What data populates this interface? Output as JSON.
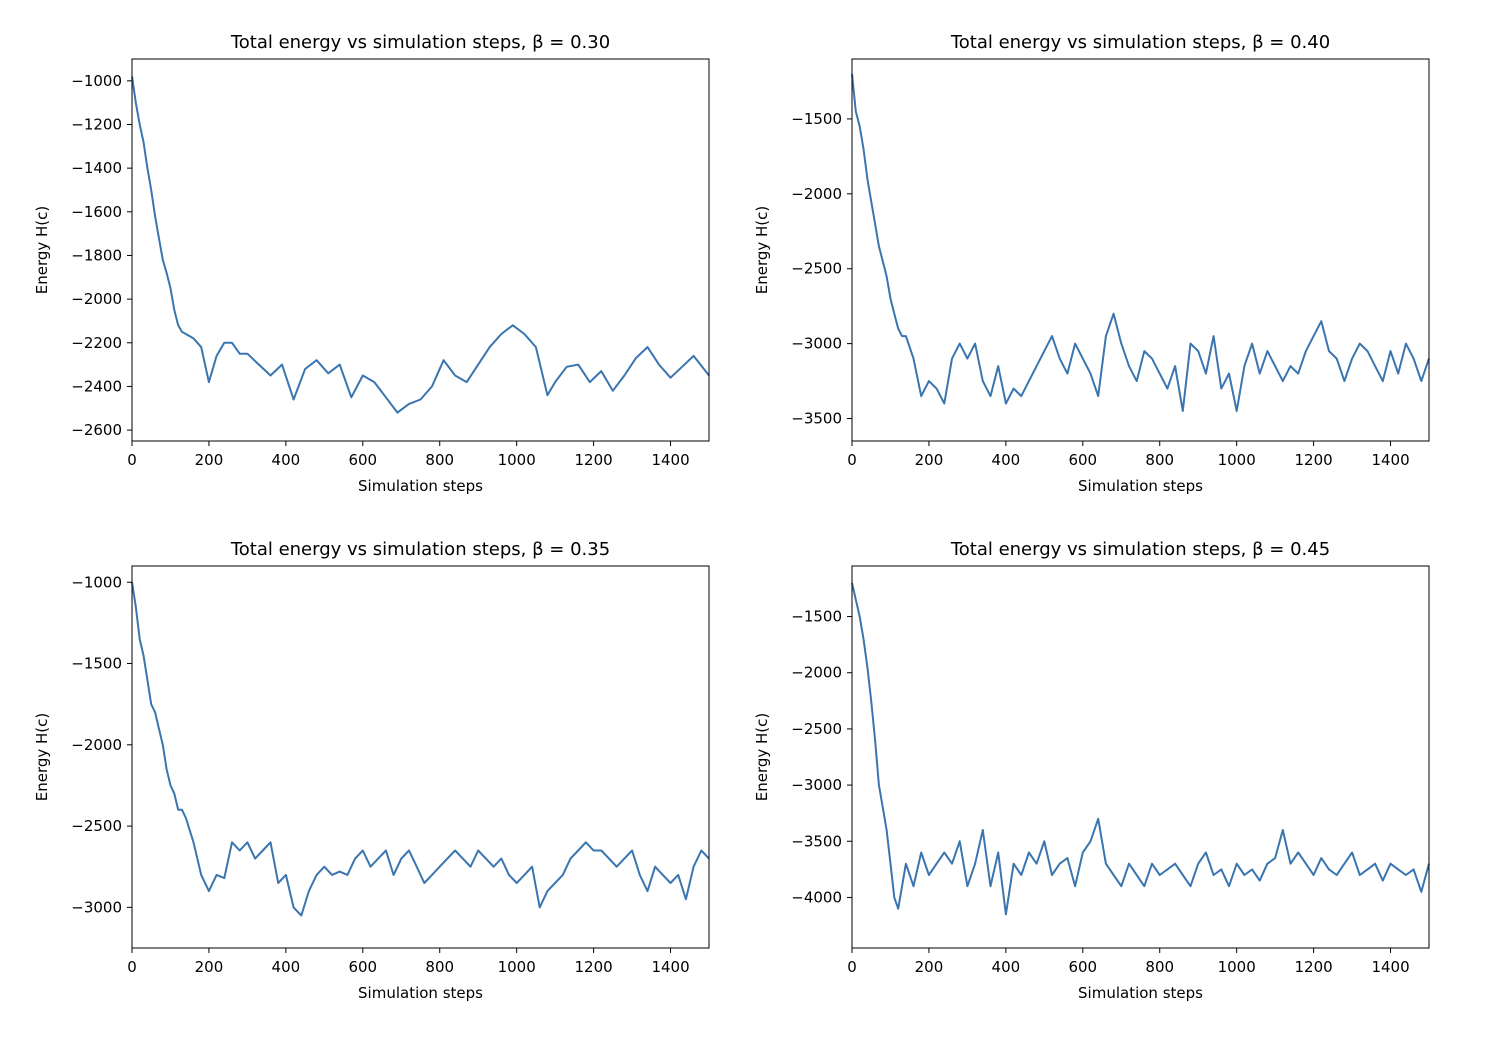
{
  "colors": {
    "line": "#3a75b0",
    "background": "#ffffff",
    "axes": "#000000"
  },
  "chart_data": [
    {
      "type": "line",
      "title": "Total energy vs simulation steps, β = 0.30",
      "xlabel": "Simulation steps",
      "ylabel": "Energy H(c)",
      "xlim": [
        0,
        1500
      ],
      "ylim": [
        -2650,
        -900
      ],
      "xticks": [
        0,
        200,
        400,
        600,
        800,
        1000,
        1200,
        1400
      ],
      "yticks": [
        -1000,
        -1200,
        -1400,
        -1600,
        -1800,
        -2000,
        -2200,
        -2400,
        -2600
      ],
      "ytick_labels": [
        "−1000",
        "−1200",
        "−1400",
        "−1600",
        "−1800",
        "−2000",
        "−2200",
        "−2400",
        "−2600"
      ],
      "grid": false,
      "series": [
        {
          "x": [
            0,
            10,
            20,
            30,
            40,
            50,
            60,
            70,
            80,
            90,
            100,
            110,
            120,
            130,
            140,
            160,
            180,
            200,
            220,
            240,
            260,
            280,
            300,
            330,
            360,
            390,
            420,
            450,
            480,
            510,
            540,
            570,
            600,
            630,
            660,
            690,
            720,
            750,
            780,
            810,
            840,
            870,
            900,
            930,
            960,
            990,
            1020,
            1050,
            1080,
            1100,
            1130,
            1160,
            1190,
            1220,
            1250,
            1280,
            1310,
            1340,
            1370,
            1400,
            1430,
            1460,
            1500
          ],
          "y": [
            -980,
            -1100,
            -1200,
            -1280,
            -1400,
            -1500,
            -1620,
            -1720,
            -1820,
            -1880,
            -1950,
            -2050,
            -2120,
            -2150,
            -2160,
            -2180,
            -2220,
            -2380,
            -2260,
            -2200,
            -2200,
            -2250,
            -2250,
            -2300,
            -2350,
            -2300,
            -2460,
            -2320,
            -2280,
            -2340,
            -2300,
            -2450,
            -2350,
            -2380,
            -2450,
            -2520,
            -2480,
            -2460,
            -2400,
            -2280,
            -2350,
            -2380,
            -2300,
            -2220,
            -2160,
            -2120,
            -2160,
            -2220,
            -2440,
            -2380,
            -2310,
            -2300,
            -2380,
            -2330,
            -2420,
            -2350,
            -2270,
            -2220,
            -2300,
            -2360,
            -2310,
            -2260,
            -2350
          ]
        }
      ]
    },
    {
      "type": "line",
      "title": "Total energy vs simulation steps, β = 0.40",
      "xlabel": "Simulation steps",
      "ylabel": "Energy H(c)",
      "xlim": [
        0,
        1500
      ],
      "ylim": [
        -3650,
        -1100
      ],
      "xticks": [
        0,
        200,
        400,
        600,
        800,
        1000,
        1200,
        1400
      ],
      "yticks": [
        -1500,
        -2000,
        -2500,
        -3000,
        -3500
      ],
      "ytick_labels": [
        "−1500",
        "−2000",
        "−2500",
        "−3000",
        "−3500"
      ],
      "grid": false,
      "series": [
        {
          "x": [
            0,
            10,
            20,
            30,
            40,
            50,
            60,
            70,
            80,
            90,
            100,
            110,
            120,
            130,
            140,
            160,
            180,
            200,
            220,
            240,
            260,
            280,
            300,
            320,
            340,
            360,
            380,
            400,
            420,
            440,
            460,
            480,
            500,
            520,
            540,
            560,
            580,
            600,
            620,
            640,
            660,
            680,
            700,
            720,
            740,
            760,
            780,
            800,
            820,
            840,
            860,
            880,
            900,
            920,
            940,
            960,
            980,
            1000,
            1020,
            1040,
            1060,
            1080,
            1100,
            1120,
            1140,
            1160,
            1180,
            1200,
            1220,
            1240,
            1260,
            1280,
            1300,
            1320,
            1340,
            1360,
            1380,
            1400,
            1420,
            1440,
            1460,
            1480,
            1500
          ],
          "y": [
            -1200,
            -1450,
            -1550,
            -1700,
            -1900,
            -2050,
            -2200,
            -2350,
            -2450,
            -2550,
            -2700,
            -2800,
            -2900,
            -2950,
            -2950,
            -3100,
            -3350,
            -3250,
            -3300,
            -3400,
            -3100,
            -3000,
            -3100,
            -3000,
            -3250,
            -3350,
            -3150,
            -3400,
            -3300,
            -3350,
            -3250,
            -3150,
            -3050,
            -2950,
            -3100,
            -3200,
            -3000,
            -3100,
            -3200,
            -3350,
            -2950,
            -2800,
            -3000,
            -3150,
            -3250,
            -3050,
            -3100,
            -3200,
            -3300,
            -3150,
            -3450,
            -3000,
            -3050,
            -3200,
            -2950,
            -3300,
            -3200,
            -3450,
            -3150,
            -3000,
            -3200,
            -3050,
            -3150,
            -3250,
            -3150,
            -3200,
            -3050,
            -2950,
            -2850,
            -3050,
            -3100,
            -3250,
            -3100,
            -3000,
            -3050,
            -3150,
            -3250,
            -3050,
            -3200,
            -3000,
            -3100,
            -3250,
            -3100
          ]
        }
      ]
    },
    {
      "type": "line",
      "title": "Total energy vs simulation steps, β = 0.35",
      "xlabel": "Simulation steps",
      "ylabel": "Energy H(c)",
      "xlim": [
        0,
        1500
      ],
      "ylim": [
        -3250,
        -900
      ],
      "xticks": [
        0,
        200,
        400,
        600,
        800,
        1000,
        1200,
        1400
      ],
      "yticks": [
        -1000,
        -1500,
        -2000,
        -2500,
        -3000
      ],
      "ytick_labels": [
        "−1000",
        "−1500",
        "−2000",
        "−2500",
        "−3000"
      ],
      "grid": false,
      "series": [
        {
          "x": [
            0,
            10,
            20,
            30,
            40,
            50,
            60,
            70,
            80,
            90,
            100,
            110,
            120,
            130,
            140,
            160,
            180,
            200,
            220,
            240,
            260,
            280,
            300,
            320,
            340,
            360,
            380,
            400,
            420,
            440,
            460,
            480,
            500,
            520,
            540,
            560,
            580,
            600,
            620,
            640,
            660,
            680,
            700,
            720,
            740,
            760,
            780,
            800,
            820,
            840,
            860,
            880,
            900,
            920,
            940,
            960,
            980,
            1000,
            1020,
            1040,
            1060,
            1080,
            1100,
            1120,
            1140,
            1160,
            1180,
            1200,
            1220,
            1240,
            1260,
            1280,
            1300,
            1320,
            1340,
            1360,
            1380,
            1400,
            1420,
            1440,
            1460,
            1480,
            1500
          ],
          "y": [
            -1000,
            -1150,
            -1350,
            -1450,
            -1600,
            -1750,
            -1800,
            -1900,
            -2000,
            -2150,
            -2250,
            -2300,
            -2400,
            -2400,
            -2450,
            -2600,
            -2800,
            -2900,
            -2800,
            -2820,
            -2600,
            -2650,
            -2600,
            -2700,
            -2650,
            -2600,
            -2850,
            -2800,
            -3000,
            -3050,
            -2900,
            -2800,
            -2750,
            -2800,
            -2780,
            -2800,
            -2700,
            -2650,
            -2750,
            -2700,
            -2650,
            -2800,
            -2700,
            -2650,
            -2750,
            -2850,
            -2800,
            -2750,
            -2700,
            -2650,
            -2700,
            -2750,
            -2650,
            -2700,
            -2750,
            -2700,
            -2800,
            -2850,
            -2800,
            -2750,
            -3000,
            -2900,
            -2850,
            -2800,
            -2700,
            -2650,
            -2600,
            -2650,
            -2650,
            -2700,
            -2750,
            -2700,
            -2650,
            -2800,
            -2900,
            -2750,
            -2800,
            -2850,
            -2800,
            -2950,
            -2750,
            -2650,
            -2700
          ]
        }
      ]
    },
    {
      "type": "line",
      "title": "Total energy vs simulation steps, β = 0.45",
      "xlabel": "Simulation steps",
      "ylabel": "Energy H(c)",
      "xlim": [
        0,
        1500
      ],
      "ylim": [
        -4450,
        -1050
      ],
      "xticks": [
        0,
        200,
        400,
        600,
        800,
        1000,
        1200,
        1400
      ],
      "yticks": [
        -1500,
        -2000,
        -2500,
        -3000,
        -3500,
        -4000
      ],
      "ytick_labels": [
        "−1500",
        "−2000",
        "−2500",
        "−3000",
        "−3500",
        "−4000"
      ],
      "grid": false,
      "series": [
        {
          "x": [
            0,
            10,
            20,
            30,
            40,
            50,
            60,
            70,
            80,
            90,
            100,
            110,
            120,
            140,
            160,
            180,
            200,
            220,
            240,
            260,
            280,
            300,
            320,
            340,
            360,
            380,
            400,
            420,
            440,
            460,
            480,
            500,
            520,
            540,
            560,
            580,
            600,
            620,
            640,
            660,
            680,
            700,
            720,
            740,
            760,
            780,
            800,
            820,
            840,
            860,
            880,
            900,
            920,
            940,
            960,
            980,
            1000,
            1020,
            1040,
            1060,
            1080,
            1100,
            1120,
            1140,
            1160,
            1180,
            1200,
            1220,
            1240,
            1260,
            1280,
            1300,
            1320,
            1340,
            1360,
            1380,
            1400,
            1420,
            1440,
            1460,
            1480,
            1500
          ],
          "y": [
            -1200,
            -1350,
            -1500,
            -1700,
            -1950,
            -2250,
            -2600,
            -3000,
            -3200,
            -3400,
            -3700,
            -4000,
            -4100,
            -3700,
            -3900,
            -3600,
            -3800,
            -3700,
            -3600,
            -3700,
            -3500,
            -3900,
            -3700,
            -3400,
            -3900,
            -3600,
            -4150,
            -3700,
            -3800,
            -3600,
            -3700,
            -3500,
            -3800,
            -3700,
            -3650,
            -3900,
            -3600,
            -3500,
            -3300,
            -3700,
            -3800,
            -3900,
            -3700,
            -3800,
            -3900,
            -3700,
            -3800,
            -3750,
            -3700,
            -3800,
            -3900,
            -3700,
            -3600,
            -3800,
            -3750,
            -3900,
            -3700,
            -3800,
            -3750,
            -3850,
            -3700,
            -3650,
            -3400,
            -3700,
            -3600,
            -3700,
            -3800,
            -3650,
            -3750,
            -3800,
            -3700,
            -3600,
            -3800,
            -3750,
            -3700,
            -3850,
            -3700,
            -3750,
            -3800,
            -3750,
            -3950,
            -3700
          ]
        }
      ]
    }
  ]
}
